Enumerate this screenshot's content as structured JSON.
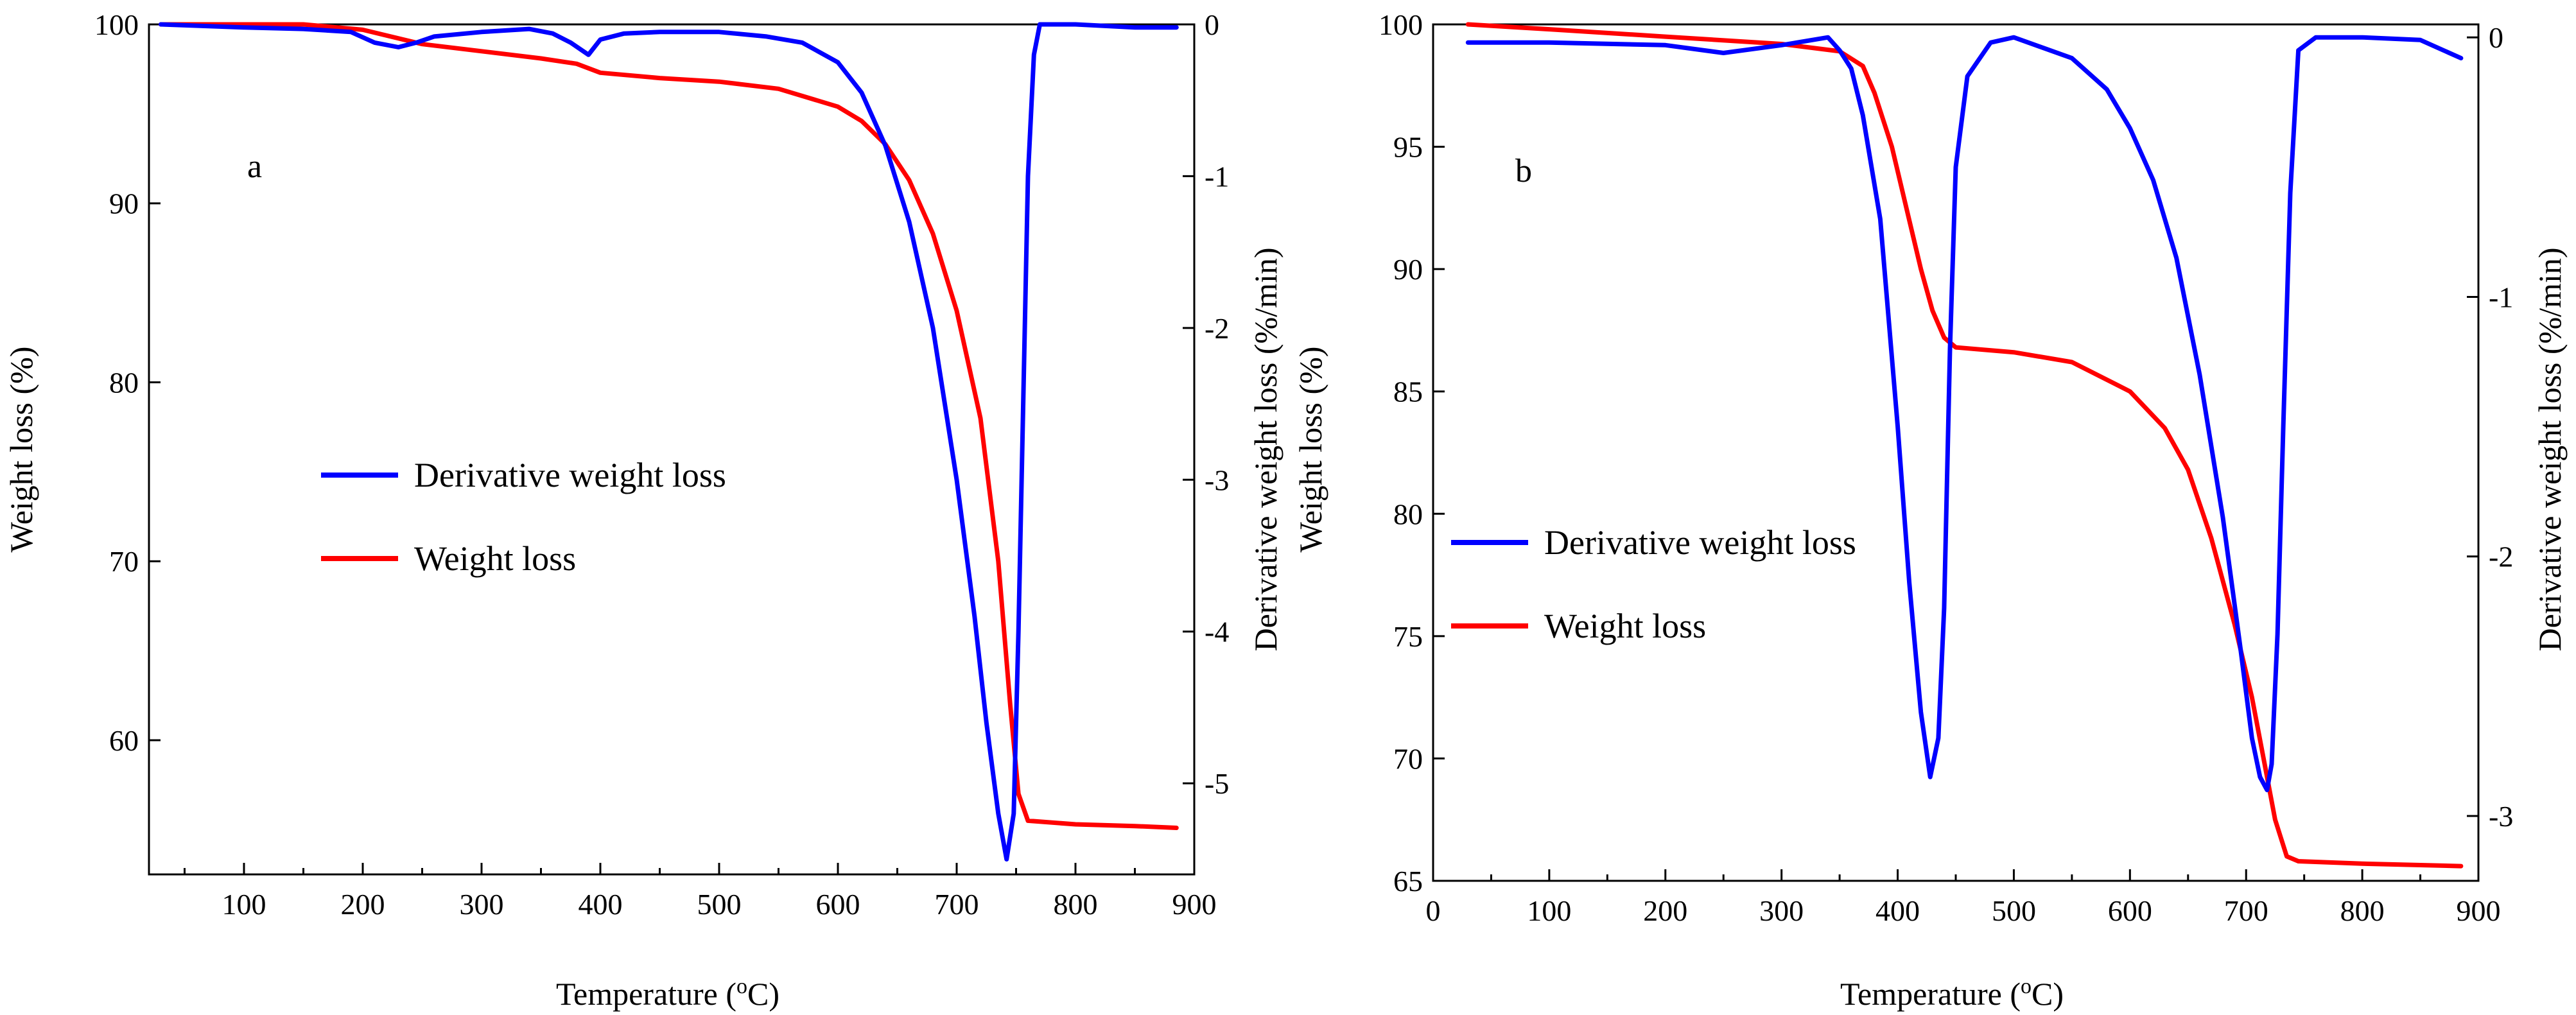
{
  "figure": {
    "background": "#ffffff"
  },
  "chart_data": [
    {
      "panel": "a",
      "type": "line",
      "panel_label": "a",
      "title": "",
      "xlabel": {
        "text": "Temperature (",
        "sup": "o",
        "unit": "C)"
      },
      "ylabel": "Weight loss (%)",
      "y2label": "Derivative weight loss (%/min)",
      "xlim": [
        20,
        900
      ],
      "ylim": [
        52.5,
        100
      ],
      "y2lim": [
        -5.6,
        0
      ],
      "x_ticks": [
        100,
        200,
        300,
        400,
        500,
        600,
        700,
        800,
        900
      ],
      "y_ticks": [
        60,
        70,
        80,
        90,
        100
      ],
      "y2_ticks": [
        -5,
        -4,
        -3,
        -2,
        -1,
        0
      ],
      "legend": [
        {
          "label": "Derivative weight loss",
          "color": "#0000ff"
        },
        {
          "label": "Weight loss",
          "color": "#ff0000"
        }
      ],
      "series": [
        {
          "name": "Weight loss",
          "axis": "left",
          "color": "#ff0000",
          "x": [
            30,
            100,
            150,
            200,
            250,
            300,
            350,
            380,
            400,
            450,
            500,
            550,
            600,
            620,
            640,
            660,
            680,
            700,
            720,
            735,
            745,
            752,
            760,
            800,
            850,
            885
          ],
          "y": [
            100,
            100,
            100,
            99.7,
            98.9,
            98.5,
            98.1,
            97.8,
            97.3,
            97.0,
            96.8,
            96.4,
            95.4,
            94.6,
            93.3,
            91.3,
            88.3,
            84.0,
            78.0,
            70.0,
            62.0,
            57.0,
            55.5,
            55.3,
            55.2,
            55.1
          ]
        },
        {
          "name": "Derivative weight loss",
          "axis": "right",
          "color": "#0000ff",
          "x": [
            30,
            100,
            150,
            190,
            210,
            230,
            245,
            260,
            300,
            340,
            360,
            375,
            390,
            400,
            420,
            450,
            500,
            540,
            570,
            600,
            620,
            640,
            660,
            680,
            700,
            715,
            725,
            735,
            742,
            748,
            752,
            756,
            760,
            765,
            770,
            780,
            800,
            850,
            885
          ],
          "y": [
            0,
            -0.02,
            -0.03,
            -0.05,
            -0.12,
            -0.15,
            -0.12,
            -0.08,
            -0.05,
            -0.03,
            -0.06,
            -0.12,
            -0.2,
            -0.1,
            -0.06,
            -0.05,
            -0.05,
            -0.08,
            -0.12,
            -0.25,
            -0.45,
            -0.8,
            -1.3,
            -2.0,
            -3.0,
            -3.9,
            -4.6,
            -5.2,
            -5.5,
            -5.2,
            -4.0,
            -2.5,
            -1.0,
            -0.2,
            0,
            0,
            0,
            -0.02,
            -0.02
          ]
        }
      ]
    },
    {
      "panel": "b",
      "type": "line",
      "panel_label": "b",
      "title": "",
      "xlabel": {
        "text": "Temperature (",
        "sup": "o",
        "unit": "C)"
      },
      "ylabel": "Weight loss (%)",
      "y2label": "Derivative weight loss (%/min)",
      "xlim": [
        0,
        900
      ],
      "ylim": [
        65,
        100
      ],
      "y2lim": [
        -3.25,
        0.05
      ],
      "x_ticks": [
        0,
        100,
        200,
        300,
        400,
        500,
        600,
        700,
        800,
        900
      ],
      "y_ticks": [
        65,
        70,
        75,
        80,
        85,
        90,
        95,
        100
      ],
      "y2_ticks": [
        -3,
        -2,
        -1,
        0
      ],
      "legend": [
        {
          "label": "Derivative weight loss",
          "color": "#0000ff"
        },
        {
          "label": "Weight loss",
          "color": "#ff0000"
        }
      ],
      "series": [
        {
          "name": "Weight loss",
          "axis": "left",
          "color": "#ff0000",
          "x": [
            30,
            100,
            200,
            300,
            350,
            370,
            380,
            395,
            410,
            420,
            430,
            440,
            450,
            500,
            550,
            600,
            630,
            650,
            670,
            690,
            705,
            715,
            725,
            735,
            745,
            800,
            885
          ],
          "y": [
            100,
            99.8,
            99.5,
            99.2,
            98.9,
            98.3,
            97.2,
            95.0,
            92.0,
            90.0,
            88.3,
            87.2,
            86.8,
            86.6,
            86.2,
            85.0,
            83.5,
            81.8,
            79.0,
            75.5,
            72.5,
            70.0,
            67.5,
            66.0,
            65.8,
            65.7,
            65.6
          ]
        },
        {
          "name": "Derivative weight loss",
          "axis": "right",
          "color": "#0000ff",
          "x": [
            30,
            100,
            200,
            250,
            300,
            340,
            350,
            360,
            370,
            385,
            400,
            410,
            420,
            428,
            435,
            440,
            445,
            450,
            460,
            480,
            500,
            550,
            580,
            600,
            620,
            640,
            660,
            680,
            695,
            705,
            712,
            718,
            722,
            727,
            732,
            738,
            745,
            760,
            800,
            850,
            885
          ],
          "y": [
            -0.02,
            -0.02,
            -0.03,
            -0.06,
            -0.03,
            0,
            -0.05,
            -0.12,
            -0.3,
            -0.7,
            -1.5,
            -2.1,
            -2.6,
            -2.85,
            -2.7,
            -2.2,
            -1.2,
            -0.5,
            -0.15,
            -0.02,
            0,
            -0.08,
            -0.2,
            -0.35,
            -0.55,
            -0.85,
            -1.3,
            -1.85,
            -2.35,
            -2.7,
            -2.85,
            -2.9,
            -2.8,
            -2.3,
            -1.5,
            -0.6,
            -0.05,
            0,
            0,
            -0.01,
            -0.08
          ]
        }
      ]
    }
  ]
}
